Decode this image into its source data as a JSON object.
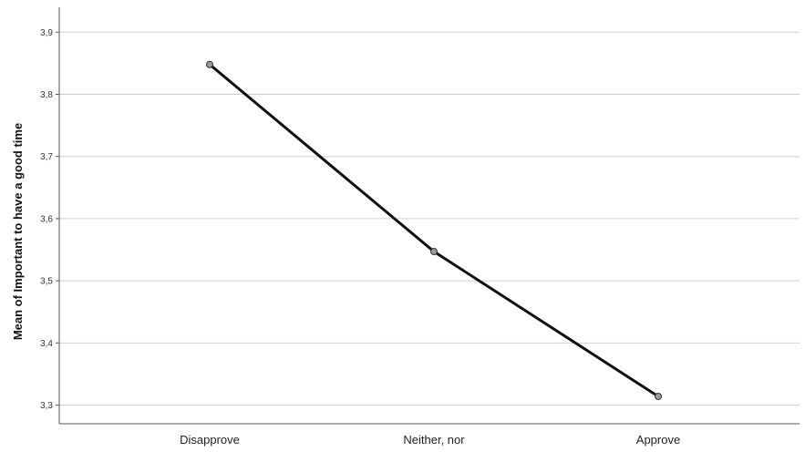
{
  "chart_data": {
    "type": "line",
    "title": "",
    "xlabel": "",
    "ylabel": "Mean of Important to have a good time",
    "categories": [
      "Disapprove",
      "Neither, nor",
      "Approve"
    ],
    "series": [
      {
        "values": [
          3.848,
          3.547,
          3.314
        ]
      }
    ],
    "ylim": [
      3.27,
      3.94
    ],
    "yticks": [
      3.3,
      3.4,
      3.5,
      3.6,
      3.7,
      3.8,
      3.9
    ],
    "ytick_labels": [
      "3,3",
      "3,4",
      "3,5",
      "3,6",
      "3,7",
      "3,8",
      "3,9"
    ],
    "grid": true,
    "legend": "none",
    "colors": {
      "line": "#111111",
      "marker_fill": "#9a9a9a",
      "grid": "#d0d0d0",
      "axis": "#555555"
    }
  }
}
